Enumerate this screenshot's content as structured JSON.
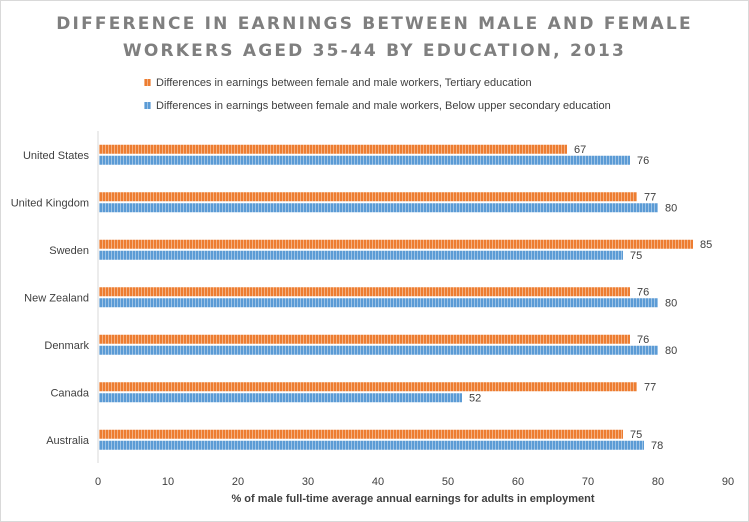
{
  "chart_data": {
    "type": "bar",
    "orientation": "horizontal",
    "title_lines": [
      "DIFFERENCE IN EARNINGS BETWEEN MALE AND FEMALE",
      "WORKERS AGED 35-44 BY EDUCATION, 2013"
    ],
    "categories": [
      "United States",
      "United Kingdom",
      "Sweden",
      "New Zealand",
      "Denmark",
      "Canada",
      "Australia"
    ],
    "series": [
      {
        "name": "Differences in earnings between female and male workers, Tertiary education",
        "color": "#ed7d31",
        "values": [
          67,
          77,
          85,
          76,
          76,
          77,
          75
        ]
      },
      {
        "name": "Differences in earnings between female and male workers, Below upper secondary education",
        "color": "#5b9bd5",
        "values": [
          76,
          80,
          75,
          80,
          80,
          52,
          78
        ]
      }
    ],
    "xlabel": "% of male full-time average annual earnings for adults in employment",
    "ylabel": "",
    "xlim": [
      0,
      90
    ],
    "xticks": [
      "0",
      "10",
      "20",
      "30",
      "40",
      "50",
      "60",
      "70",
      "80",
      "90"
    ],
    "legend_position": "top",
    "bar_pattern": "vertical-stripes"
  }
}
